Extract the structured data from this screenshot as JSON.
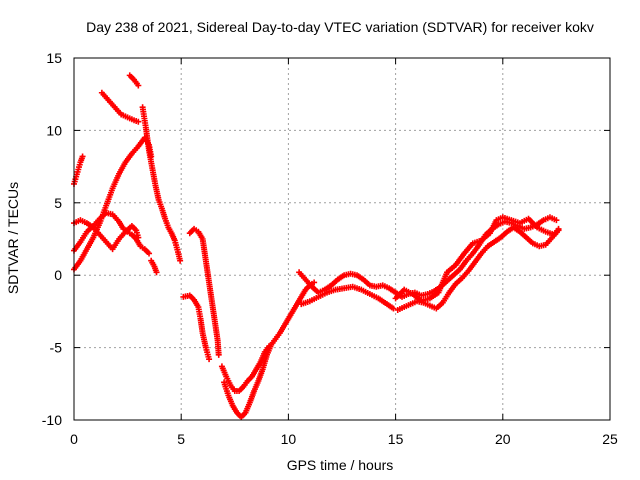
{
  "chart_data": {
    "type": "scatter",
    "title": "Day 238 of 2021, Sidereal Day-to-day VTEC variation (SDTVAR) for receiver kokv",
    "xlabel": "GPS time / hours",
    "ylabel": "SDTVAR / TECUs",
    "xlim": [
      0,
      25
    ],
    "ylim": [
      -10,
      15
    ],
    "xticks": [
      "0",
      "5",
      "10",
      "15",
      "20",
      "25"
    ],
    "yticks": [
      "-10",
      "-5",
      "0",
      "5",
      "10",
      "15"
    ],
    "marker": "+",
    "grid": true,
    "series": [
      {
        "name": "SDTVAR",
        "color": "#ff0000",
        "tracks": [
          [
            [
              0.0,
              6.3
            ],
            [
              0.1,
              6.8
            ],
            [
              0.2,
              7.3
            ],
            [
              0.3,
              7.8
            ],
            [
              0.4,
              8.2
            ]
          ],
          [
            [
              1.3,
              12.6
            ],
            [
              1.6,
              12.1
            ],
            [
              1.9,
              11.6
            ],
            [
              2.2,
              11.1
            ],
            [
              2.5,
              10.9
            ],
            [
              2.8,
              10.7
            ],
            [
              3.0,
              10.6
            ]
          ],
          [
            [
              2.6,
              13.8
            ],
            [
              2.8,
              13.5
            ],
            [
              3.0,
              13.1
            ]
          ],
          [
            [
              3.2,
              11.6
            ],
            [
              3.35,
              10.2
            ],
            [
              3.5,
              8.6
            ],
            [
              3.65,
              7.4
            ],
            [
              3.8,
              6.2
            ],
            [
              3.95,
              5.2
            ],
            [
              4.1,
              4.6
            ],
            [
              4.25,
              3.9
            ],
            [
              4.4,
              3.3
            ],
            [
              4.55,
              2.9
            ],
            [
              4.7,
              2.4
            ],
            [
              4.85,
              1.6
            ],
            [
              4.95,
              1.0
            ]
          ],
          [
            [
              0.0,
              0.4
            ],
            [
              0.3,
              1.0
            ],
            [
              0.6,
              1.8
            ],
            [
              0.9,
              2.6
            ],
            [
              1.2,
              3.6
            ],
            [
              1.5,
              4.8
            ],
            [
              1.8,
              6.0
            ],
            [
              2.1,
              7.0
            ],
            [
              2.4,
              7.8
            ],
            [
              2.7,
              8.4
            ],
            [
              3.0,
              8.9
            ],
            [
              3.3,
              9.5
            ],
            [
              3.5,
              9.0
            ],
            [
              3.6,
              8.2
            ]
          ],
          [
            [
              0.0,
              1.7
            ],
            [
              0.3,
              2.3
            ],
            [
              0.6,
              3.0
            ],
            [
              0.9,
              3.4
            ],
            [
              1.2,
              3.9
            ],
            [
              1.5,
              4.3
            ],
            [
              1.8,
              4.2
            ],
            [
              2.1,
              3.7
            ],
            [
              2.3,
              3.2
            ],
            [
              2.5,
              3.0
            ],
            [
              2.7,
              2.8
            ],
            [
              2.9,
              2.5
            ],
            [
              3.1,
              2.0
            ],
            [
              3.3,
              1.8
            ],
            [
              3.5,
              1.5
            ]
          ],
          [
            [
              0.0,
              3.6
            ],
            [
              0.3,
              3.8
            ],
            [
              0.6,
              3.6
            ],
            [
              0.9,
              3.3
            ],
            [
              1.2,
              2.8
            ],
            [
              1.5,
              2.3
            ],
            [
              1.8,
              1.8
            ],
            [
              2.1,
              2.5
            ],
            [
              2.4,
              3.0
            ],
            [
              2.7,
              3.4
            ],
            [
              2.9,
              3.1
            ],
            [
              3.0,
              2.6
            ]
          ],
          [
            [
              3.6,
              1.0
            ],
            [
              3.75,
              0.6
            ],
            [
              3.85,
              0.2
            ]
          ],
          [
            [
              5.1,
              -1.5
            ],
            [
              5.4,
              -1.4
            ],
            [
              5.6,
              -1.7
            ],
            [
              5.8,
              -2.2
            ],
            [
              5.9,
              -3.0
            ],
            [
              6.0,
              -4.0
            ],
            [
              6.15,
              -5.0
            ],
            [
              6.3,
              -5.8
            ]
          ],
          [
            [
              5.4,
              2.9
            ],
            [
              5.6,
              3.2
            ],
            [
              5.8,
              3.0
            ],
            [
              6.0,
              2.5
            ],
            [
              6.1,
              1.5
            ],
            [
              6.2,
              0.5
            ],
            [
              6.3,
              -0.5
            ],
            [
              6.4,
              -1.5
            ],
            [
              6.5,
              -2.5
            ],
            [
              6.6,
              -3.5
            ],
            [
              6.7,
              -4.5
            ],
            [
              6.75,
              -5.5
            ]
          ],
          [
            [
              6.9,
              -6.3
            ],
            [
              7.1,
              -7.0
            ],
            [
              7.3,
              -7.6
            ],
            [
              7.5,
              -8.0
            ],
            [
              7.7,
              -8.0
            ],
            [
              7.9,
              -7.7
            ],
            [
              8.1,
              -7.3
            ],
            [
              8.3,
              -7.0
            ],
            [
              8.5,
              -6.5
            ],
            [
              8.7,
              -6.0
            ],
            [
              8.9,
              -5.3
            ],
            [
              9.1,
              -4.9
            ]
          ],
          [
            [
              7.0,
              -7.4
            ],
            [
              7.2,
              -8.3
            ],
            [
              7.4,
              -9.0
            ],
            [
              7.6,
              -9.5
            ],
            [
              7.8,
              -9.8
            ],
            [
              8.0,
              -9.5
            ],
            [
              8.2,
              -8.8
            ],
            [
              8.4,
              -8.0
            ],
            [
              8.6,
              -7.3
            ],
            [
              8.8,
              -6.5
            ],
            [
              9.0,
              -5.5
            ],
            [
              9.2,
              -4.8
            ],
            [
              9.4,
              -4.4
            ],
            [
              9.6,
              -4.0
            ],
            [
              9.8,
              -3.5
            ],
            [
              10.0,
              -3.0
            ],
            [
              10.2,
              -2.5
            ],
            [
              10.4,
              -2.0
            ],
            [
              10.6,
              -1.5
            ],
            [
              10.8,
              -1.0
            ],
            [
              11.0,
              -0.7
            ],
            [
              11.2,
              -0.5
            ]
          ],
          [
            [
              10.5,
              0.2
            ],
            [
              10.8,
              -0.3
            ],
            [
              11.1,
              -0.8
            ],
            [
              11.4,
              -1.2
            ],
            [
              11.7,
              -1.0
            ],
            [
              12.0,
              -0.7
            ],
            [
              12.3,
              -0.3
            ],
            [
              12.6,
              0.0
            ],
            [
              12.9,
              0.1
            ],
            [
              13.2,
              0.0
            ],
            [
              13.5,
              -0.3
            ],
            [
              13.8,
              -0.7
            ],
            [
              14.1,
              -0.8
            ],
            [
              14.4,
              -0.7
            ],
            [
              14.7,
              -0.9
            ],
            [
              15.0,
              -1.2
            ]
          ],
          [
            [
              10.6,
              -2.0
            ],
            [
              11.0,
              -1.8
            ],
            [
              11.4,
              -1.5
            ],
            [
              11.8,
              -1.2
            ],
            [
              12.2,
              -1.0
            ],
            [
              12.6,
              -0.9
            ],
            [
              13.0,
              -0.8
            ],
            [
              13.4,
              -1.0
            ],
            [
              13.8,
              -1.3
            ],
            [
              14.2,
              -1.6
            ],
            [
              14.6,
              -2.0
            ],
            [
              14.9,
              -2.3
            ]
          ],
          [
            [
              15.0,
              -1.2
            ],
            [
              15.3,
              -1.5
            ],
            [
              15.6,
              -1.3
            ],
            [
              15.9,
              -1.2
            ],
            [
              16.2,
              -1.4
            ],
            [
              16.5,
              -1.3
            ],
            [
              16.8,
              -1.1
            ],
            [
              17.1,
              -0.8
            ],
            [
              17.4,
              -0.4
            ],
            [
              17.7,
              0.0
            ],
            [
              18.0,
              0.4
            ],
            [
              18.3,
              1.0
            ],
            [
              18.6,
              1.5
            ],
            [
              18.9,
              2.1
            ],
            [
              19.2,
              2.8
            ],
            [
              19.5,
              3.2
            ],
            [
              19.8,
              3.5
            ],
            [
              20.1,
              3.7
            ],
            [
              20.4,
              3.6
            ],
            [
              20.7,
              3.4
            ],
            [
              21.0,
              3.2
            ],
            [
              21.3,
              3.3
            ],
            [
              21.6,
              3.5
            ],
            [
              21.9,
              3.8
            ],
            [
              22.2,
              4.0
            ],
            [
              22.5,
              3.8
            ]
          ],
          [
            [
              15.1,
              -2.4
            ],
            [
              15.4,
              -2.2
            ],
            [
              15.7,
              -2.0
            ],
            [
              16.0,
              -1.8
            ],
            [
              16.3,
              -1.9
            ],
            [
              16.6,
              -2.1
            ],
            [
              16.9,
              -2.3
            ],
            [
              17.2,
              -1.9
            ],
            [
              17.5,
              -1.2
            ],
            [
              17.8,
              -0.6
            ],
            [
              18.1,
              -0.2
            ],
            [
              18.4,
              0.3
            ],
            [
              18.7,
              0.9
            ],
            [
              19.0,
              1.5
            ],
            [
              19.3,
              2.0
            ],
            [
              19.6,
              2.3
            ],
            [
              19.9,
              2.6
            ],
            [
              20.2,
              3.0
            ],
            [
              20.5,
              3.3
            ],
            [
              20.8,
              3.0
            ],
            [
              21.1,
              2.6
            ],
            [
              21.4,
              2.2
            ],
            [
              21.7,
              2.0
            ],
            [
              22.0,
              2.1
            ],
            [
              22.3,
              2.6
            ],
            [
              22.6,
              3.1
            ]
          ],
          [
            [
              15.0,
              -1.6
            ],
            [
              15.4,
              -1.0
            ],
            [
              15.8,
              -1.3
            ],
            [
              16.2,
              -1.8
            ],
            [
              16.6,
              -1.6
            ],
            [
              17.0,
              -1.2
            ],
            [
              17.4,
              0.2
            ],
            [
              17.8,
              0.7
            ],
            [
              18.2,
              1.5
            ],
            [
              18.6,
              2.2
            ],
            [
              19.0,
              2.4
            ],
            [
              19.4,
              2.9
            ],
            [
              19.7,
              3.8
            ],
            [
              20.0,
              4.0
            ],
            [
              20.4,
              3.8
            ],
            [
              20.8,
              3.6
            ],
            [
              21.2,
              3.9
            ],
            [
              21.6,
              3.3
            ],
            [
              22.0,
              3.0
            ],
            [
              22.4,
              2.8
            ],
            [
              22.6,
              3.2
            ]
          ]
        ]
      }
    ]
  }
}
